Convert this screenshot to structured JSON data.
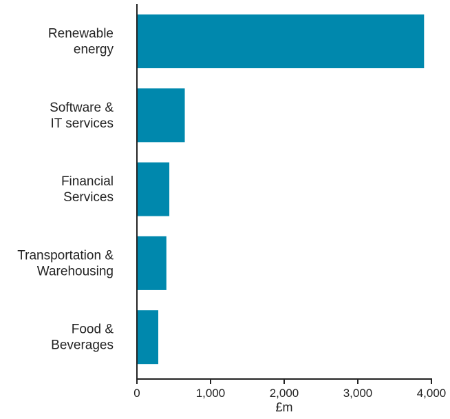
{
  "chart_data": {
    "type": "bar",
    "orientation": "horizontal",
    "categories": [
      [
        "Renewable",
        "energy"
      ],
      [
        "Software &",
        "IT services"
      ],
      [
        "Financial",
        "Services"
      ],
      [
        "Transportation &",
        "Warehousing"
      ],
      [
        "Food &",
        "Beverages"
      ]
    ],
    "values": [
      3900,
      650,
      440,
      400,
      290
    ],
    "xlim": [
      0,
      4000
    ],
    "xticks": [
      0,
      1000,
      2000,
      3000,
      4000
    ],
    "xtick_labels": [
      "0",
      "1,000",
      "2,000",
      "3,000",
      "4,000"
    ],
    "xlabel": "£m",
    "ylabel": "",
    "title": "",
    "grid": false,
    "legend": "none",
    "bar_color": "#0088ad",
    "axis_color": "#222222"
  }
}
